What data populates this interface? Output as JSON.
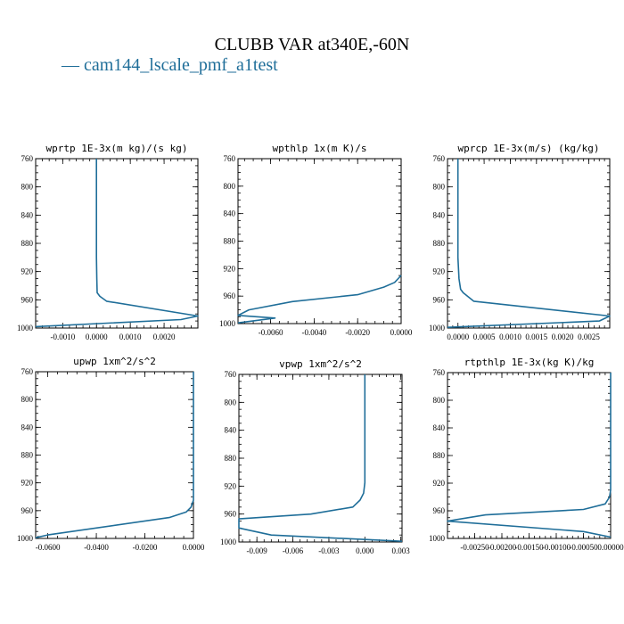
{
  "figure": {
    "title": "CLUBB VAR at340E,-60N",
    "legend": [
      {
        "name": "cam144_lscale_pmf_a1test",
        "color": "#1f6e99"
      }
    ]
  },
  "chart_data": [
    {
      "type": "line",
      "title": "wprtp  1E-3x(m kg)/(s kg)",
      "xlim": [
        -0.0018,
        0.003
      ],
      "ylim": [
        760,
        1000
      ],
      "y_inverted": true,
      "xticks": [
        -0.001,
        0.0,
        0.001,
        0.002
      ],
      "xtick_labels": [
        "-0.0010",
        "0.0000",
        "0.0010",
        "0.0020"
      ],
      "yticks": [
        760,
        800,
        840,
        880,
        920,
        960,
        1000
      ],
      "series": [
        {
          "name": "cam144_lscale_pmf_a1test",
          "color": "#1f6e99",
          "x": [
            0.0,
            0.0,
            1e-05,
            2e-05,
            0.0001,
            0.0003,
            0.003,
            0.0025,
            -0.0018
          ],
          "y": [
            760,
            900,
            930,
            950,
            955,
            962,
            983,
            988,
            998
          ]
        }
      ]
    },
    {
      "type": "line",
      "title": "wpthlp  1x(m K)/s",
      "xlim": [
        -0.0075,
        0.0
      ],
      "ylim": [
        760,
        1000
      ],
      "y_inverted": true,
      "xticks": [
        -0.006,
        -0.004,
        -0.002,
        0.0
      ],
      "xtick_labels": [
        "-0.0060",
        "-0.0040",
        "-0.0020",
        "0.0000"
      ],
      "yticks": [
        760,
        800,
        840,
        880,
        920,
        960,
        1000
      ],
      "series": [
        {
          "name": "cam144_lscale_pmf_a1test",
          "color": "#1f6e99",
          "x": [
            0.0,
            -0.0003,
            -0.0008,
            -0.002,
            -0.005,
            -0.007,
            -0.0075,
            -0.0058,
            -0.0075
          ],
          "y": [
            930,
            940,
            947,
            958,
            968,
            980,
            988,
            992,
            999
          ]
        }
      ]
    },
    {
      "type": "line",
      "title": "wprcp  1E-3x(m/s) (kg/kg)",
      "xlim": [
        -0.0002,
        0.0029
      ],
      "ylim": [
        760,
        1000
      ],
      "y_inverted": true,
      "xticks": [
        0.0,
        0.0005,
        0.001,
        0.0015,
        0.002,
        0.0025
      ],
      "xtick_labels": [
        "0.0000",
        "0.0005",
        "0.0010",
        "0.0015",
        "0.0020",
        "0.0025"
      ],
      "yticks": [
        760,
        800,
        840,
        880,
        920,
        960,
        1000
      ],
      "series": [
        {
          "name": "cam144_lscale_pmf_a1test",
          "color": "#1f6e99",
          "x": [
            0.0,
            0.0,
            2e-05,
            5e-05,
            0.0001,
            0.0003,
            0.0029,
            0.0027,
            -0.0002
          ],
          "y": [
            760,
            900,
            930,
            945,
            950,
            962,
            983,
            990,
            999
          ]
        }
      ]
    },
    {
      "type": "line",
      "title": "upwp  1xm^2/s^2",
      "xlim": [
        -0.065,
        0.0
      ],
      "ylim": [
        760,
        1000
      ],
      "y_inverted": true,
      "xticks": [
        -0.06,
        -0.04,
        -0.02,
        0.0
      ],
      "xtick_labels": [
        "-0.0600",
        "-0.0400",
        "-0.0200",
        "0.0000"
      ],
      "yticks": [
        760,
        800,
        840,
        880,
        920,
        960,
        1000
      ],
      "series": [
        {
          "name": "cam144_lscale_pmf_a1test",
          "color": "#1f6e99",
          "x": [
            0.0,
            0.0,
            -0.001,
            -0.003,
            -0.01,
            -0.06,
            -0.065
          ],
          "y": [
            760,
            945,
            955,
            962,
            970,
            995,
            999
          ]
        }
      ]
    },
    {
      "type": "line",
      "title": "vpwp  1xm^2/s^2",
      "xlim": [
        -0.0105,
        0.0031
      ],
      "ylim": [
        760,
        1000
      ],
      "y_inverted": true,
      "xticks": [
        -0.009,
        -0.006,
        -0.003,
        0.0,
        0.003
      ],
      "xtick_labels": [
        "-0.009",
        "-0.006",
        "-0.003",
        "0.000",
        "0.003"
      ],
      "yticks": [
        760,
        800,
        840,
        880,
        920,
        960,
        1000
      ],
      "series": [
        {
          "name": "cam144_lscale_pmf_a1test",
          "color": "#1f6e99",
          "x": [
            0.0,
            0.0,
            -0.0001,
            -0.0004,
            -0.001,
            -0.0045,
            -0.0105,
            -0.0105,
            -0.0078,
            0.0031
          ],
          "y": [
            760,
            915,
            930,
            940,
            950,
            960,
            967,
            980,
            990,
            999
          ]
        }
      ]
    },
    {
      "type": "line",
      "title": "rtpthlp  1E-3x(kg K)/kg",
      "xlim": [
        -0.003,
        0.0
      ],
      "ylim": [
        760,
        1000
      ],
      "y_inverted": true,
      "xticks": [
        -0.0025,
        -0.002,
        -0.0015,
        -0.001,
        -0.0005,
        0.0
      ],
      "xtick_labels": [
        "-0.00250",
        "-0.00200",
        "-0.00150",
        "-0.00100",
        "-0.00050",
        "0.00000"
      ],
      "yticks": [
        760,
        800,
        840,
        880,
        920,
        960,
        1000
      ],
      "series": [
        {
          "name": "cam144_lscale_pmf_a1test",
          "color": "#1f6e99",
          "x": [
            0.0,
            0.0,
            -2e-05,
            -0.0001,
            -0.0005,
            -0.0023,
            -0.003,
            -0.0005,
            0.0
          ],
          "y": [
            760,
            930,
            940,
            950,
            958,
            966,
            975,
            990,
            998
          ]
        }
      ]
    }
  ]
}
